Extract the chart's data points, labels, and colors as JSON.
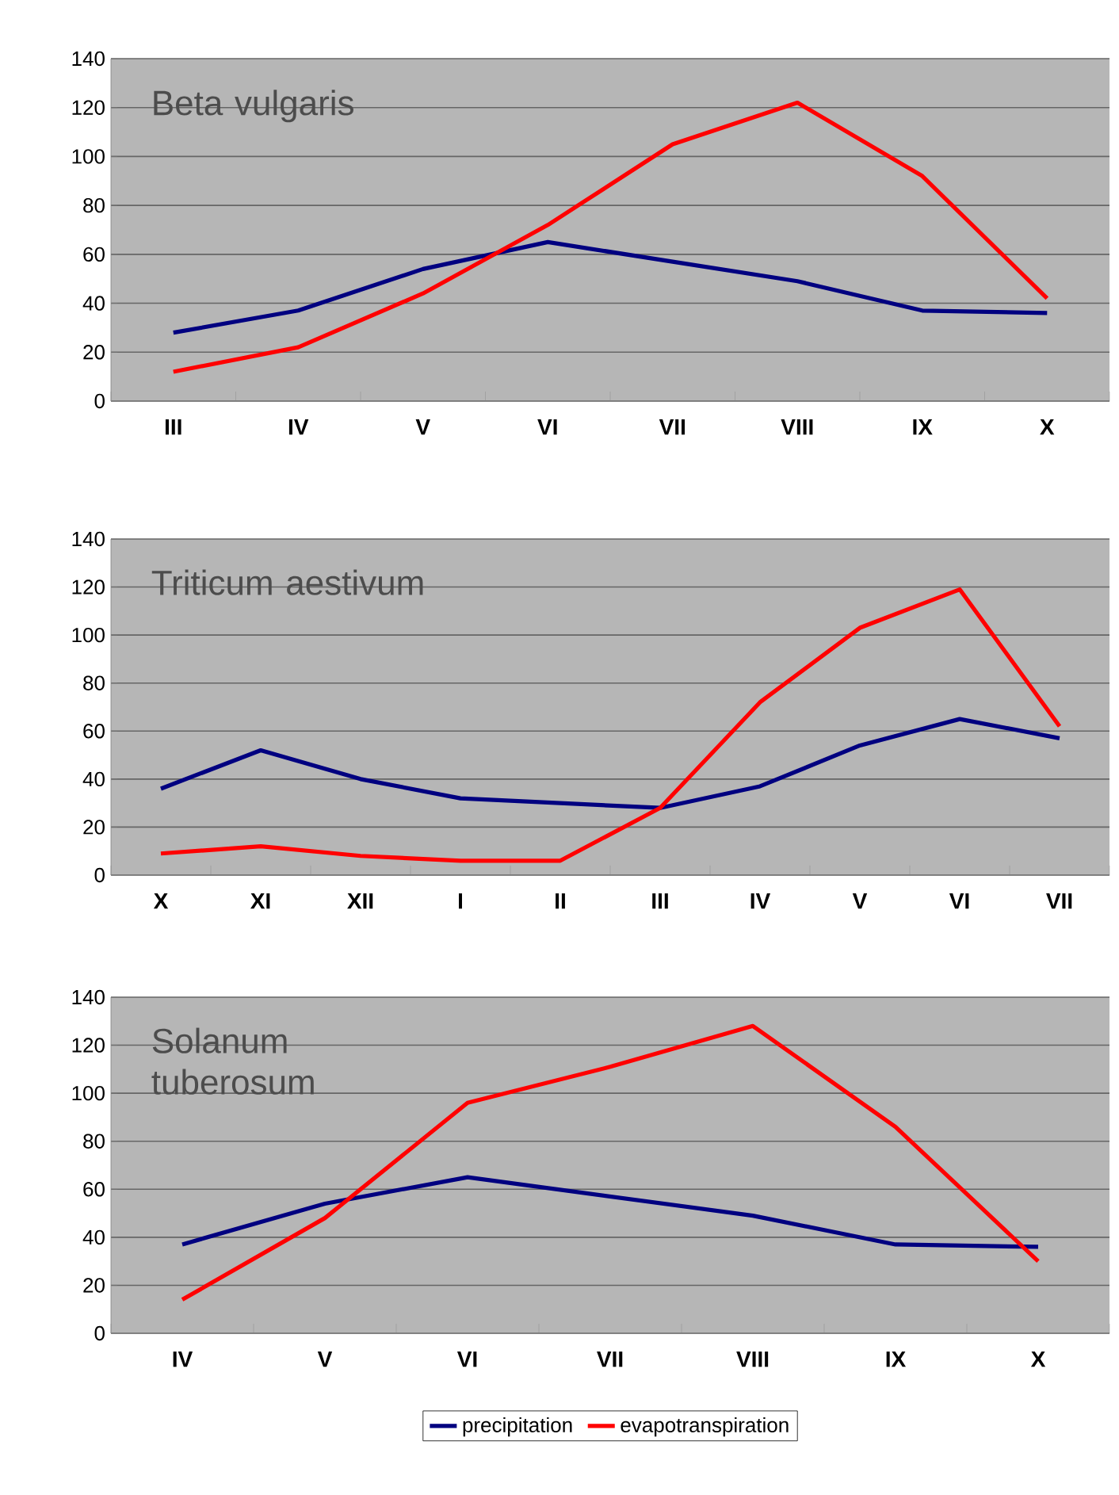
{
  "chart_data": [
    {
      "type": "line",
      "title": "Beta vulgaris",
      "categories": [
        "III",
        "IV",
        "V",
        "VI",
        "VII",
        "VIII",
        "IX",
        "X"
      ],
      "series": [
        {
          "color": "#000080",
          "values": [
            28,
            37,
            54,
            65,
            57,
            49,
            37,
            36
          ]
        },
        {
          "color": "#ff0000",
          "values": [
            12,
            22,
            44,
            72,
            105,
            122,
            92,
            42
          ]
        }
      ],
      "ylim": [
        0,
        140
      ],
      "yticks": [
        0,
        20,
        40,
        60,
        80,
        100,
        120,
        140
      ],
      "grid": "y",
      "legend": false
    },
    {
      "type": "line",
      "title": "Triticum aestivum",
      "categories": [
        "X",
        "XI",
        "XII",
        "I",
        "II",
        "III",
        "IV",
        "V",
        "VI",
        "VII"
      ],
      "series": [
        {
          "color": "#000080",
          "values": [
            36,
            52,
            40,
            32,
            30,
            28,
            37,
            54,
            65,
            57
          ]
        },
        {
          "color": "#ff0000",
          "values": [
            9,
            12,
            8,
            6,
            6,
            28,
            72,
            103,
            119,
            62
          ]
        }
      ],
      "ylim": [
        0,
        140
      ],
      "yticks": [
        0,
        20,
        40,
        60,
        80,
        100,
        120,
        140
      ],
      "grid": "y",
      "legend": false
    },
    {
      "type": "line",
      "title": "Solanum tuberosum",
      "categories": [
        "IV",
        "V",
        "VI",
        "VII",
        "VIII",
        "IX",
        "X"
      ],
      "series": [
        {
          "name": "precipitation",
          "color": "#000080",
          "values": [
            37,
            54,
            65,
            57,
            49,
            37,
            36
          ]
        },
        {
          "name": "evapotranspiration",
          "color": "#ff0000",
          "values": [
            14,
            48,
            96,
            111,
            128,
            86,
            30
          ]
        }
      ],
      "ylim": [
        0,
        140
      ],
      "yticks": [
        0,
        20,
        40,
        60,
        80,
        100,
        120,
        140
      ],
      "grid": "y",
      "legend": "bottom"
    }
  ]
}
